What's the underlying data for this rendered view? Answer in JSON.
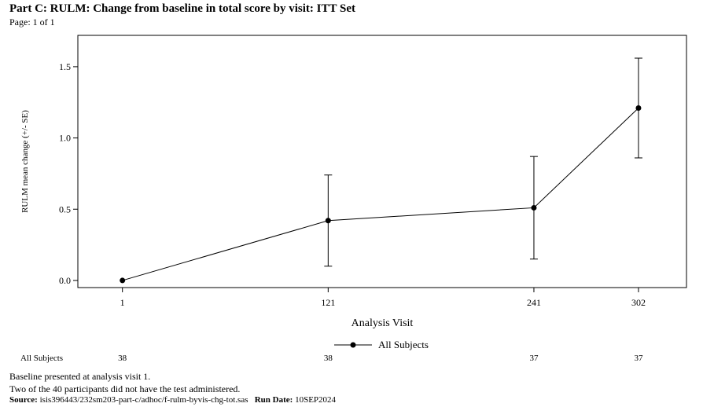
{
  "header": {
    "title": "Part C: RULM: Change from baseline in total score by visit: ITT Set",
    "page_number": "Page: 1 of 1"
  },
  "chart_data": {
    "type": "line",
    "title": "",
    "xlabel": "Analysis Visit",
    "ylabel": "RULM mean change (+/- SE)",
    "x": [
      1,
      121,
      241,
      302
    ],
    "x_ticks": [
      "1",
      "121",
      "241",
      "302"
    ],
    "y_ticks": [
      "0.0",
      "0.5",
      "1.0",
      "1.5"
    ],
    "xlim": [
      -25,
      330
    ],
    "ylim": [
      -0.05,
      1.72
    ],
    "series": [
      {
        "name": "All Subjects",
        "values": [
          0.0,
          0.42,
          0.51,
          1.21
        ],
        "se_lower": [
          0.0,
          0.1,
          0.15,
          0.86
        ],
        "se_upper": [
          0.0,
          0.74,
          0.87,
          1.56
        ]
      }
    ],
    "legend": {
      "position": "bottom-center",
      "entries": [
        "All Subjects"
      ]
    },
    "grid": false,
    "subjects_table": {
      "row_label": "All Subjects",
      "counts": [
        "38",
        "38",
        "37",
        "37"
      ]
    },
    "colors": {
      "line": "#000000",
      "marker": "#000000",
      "axis": "#000000"
    }
  },
  "footer": {
    "note_1": "Baseline presented at analysis visit 1.",
    "note_2": "Two of the 40 participants did not have the test administered.",
    "source_label": "Source:",
    "source_value": "isis396443/232sm203-part-c/adhoc/f-rulm-byvis-chg-tot.sas",
    "run_date_label": "Run Date:",
    "run_date_value": "10SEP2024"
  }
}
